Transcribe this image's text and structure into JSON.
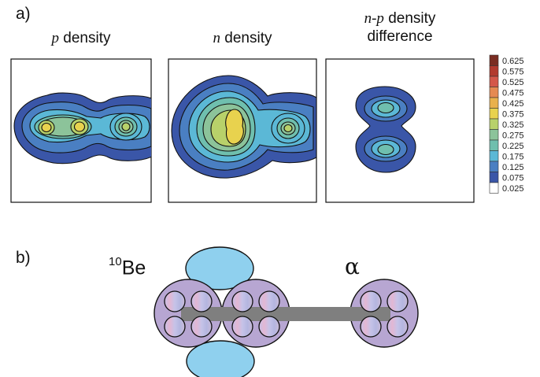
{
  "panel_a": {
    "label": "a)",
    "titles": {
      "p_var": "p",
      "p_rest": " density",
      "n_var": "n",
      "n_rest": " density",
      "diff_var": "n-p",
      "diff_rest": " density",
      "diff_line2": "difference"
    },
    "colorbar": {
      "ticks": [
        "0.625",
        "0.575",
        "0.525",
        "0.475",
        "0.425",
        "0.375",
        "0.325",
        "0.275",
        "0.225",
        "0.175",
        "0.125",
        "0.075",
        "0.025"
      ],
      "colors": [
        "#7a2d22",
        "#b23a2e",
        "#d4574a",
        "#e58a52",
        "#e9b14c",
        "#e8d24e",
        "#b8d16a",
        "#8cc39a",
        "#6fbfae",
        "#5bb8d6",
        "#4a7fc2",
        "#3a56a8",
        "#ffffff"
      ]
    }
  },
  "panel_b": {
    "label": "b)",
    "be_sup": "10",
    "be_text": "Be",
    "alpha": "α",
    "colors": {
      "cluster_fill": "#b7a6d2",
      "ellipse_fill": "#8fd0ee",
      "bar": "#7f7f7f"
    }
  }
}
